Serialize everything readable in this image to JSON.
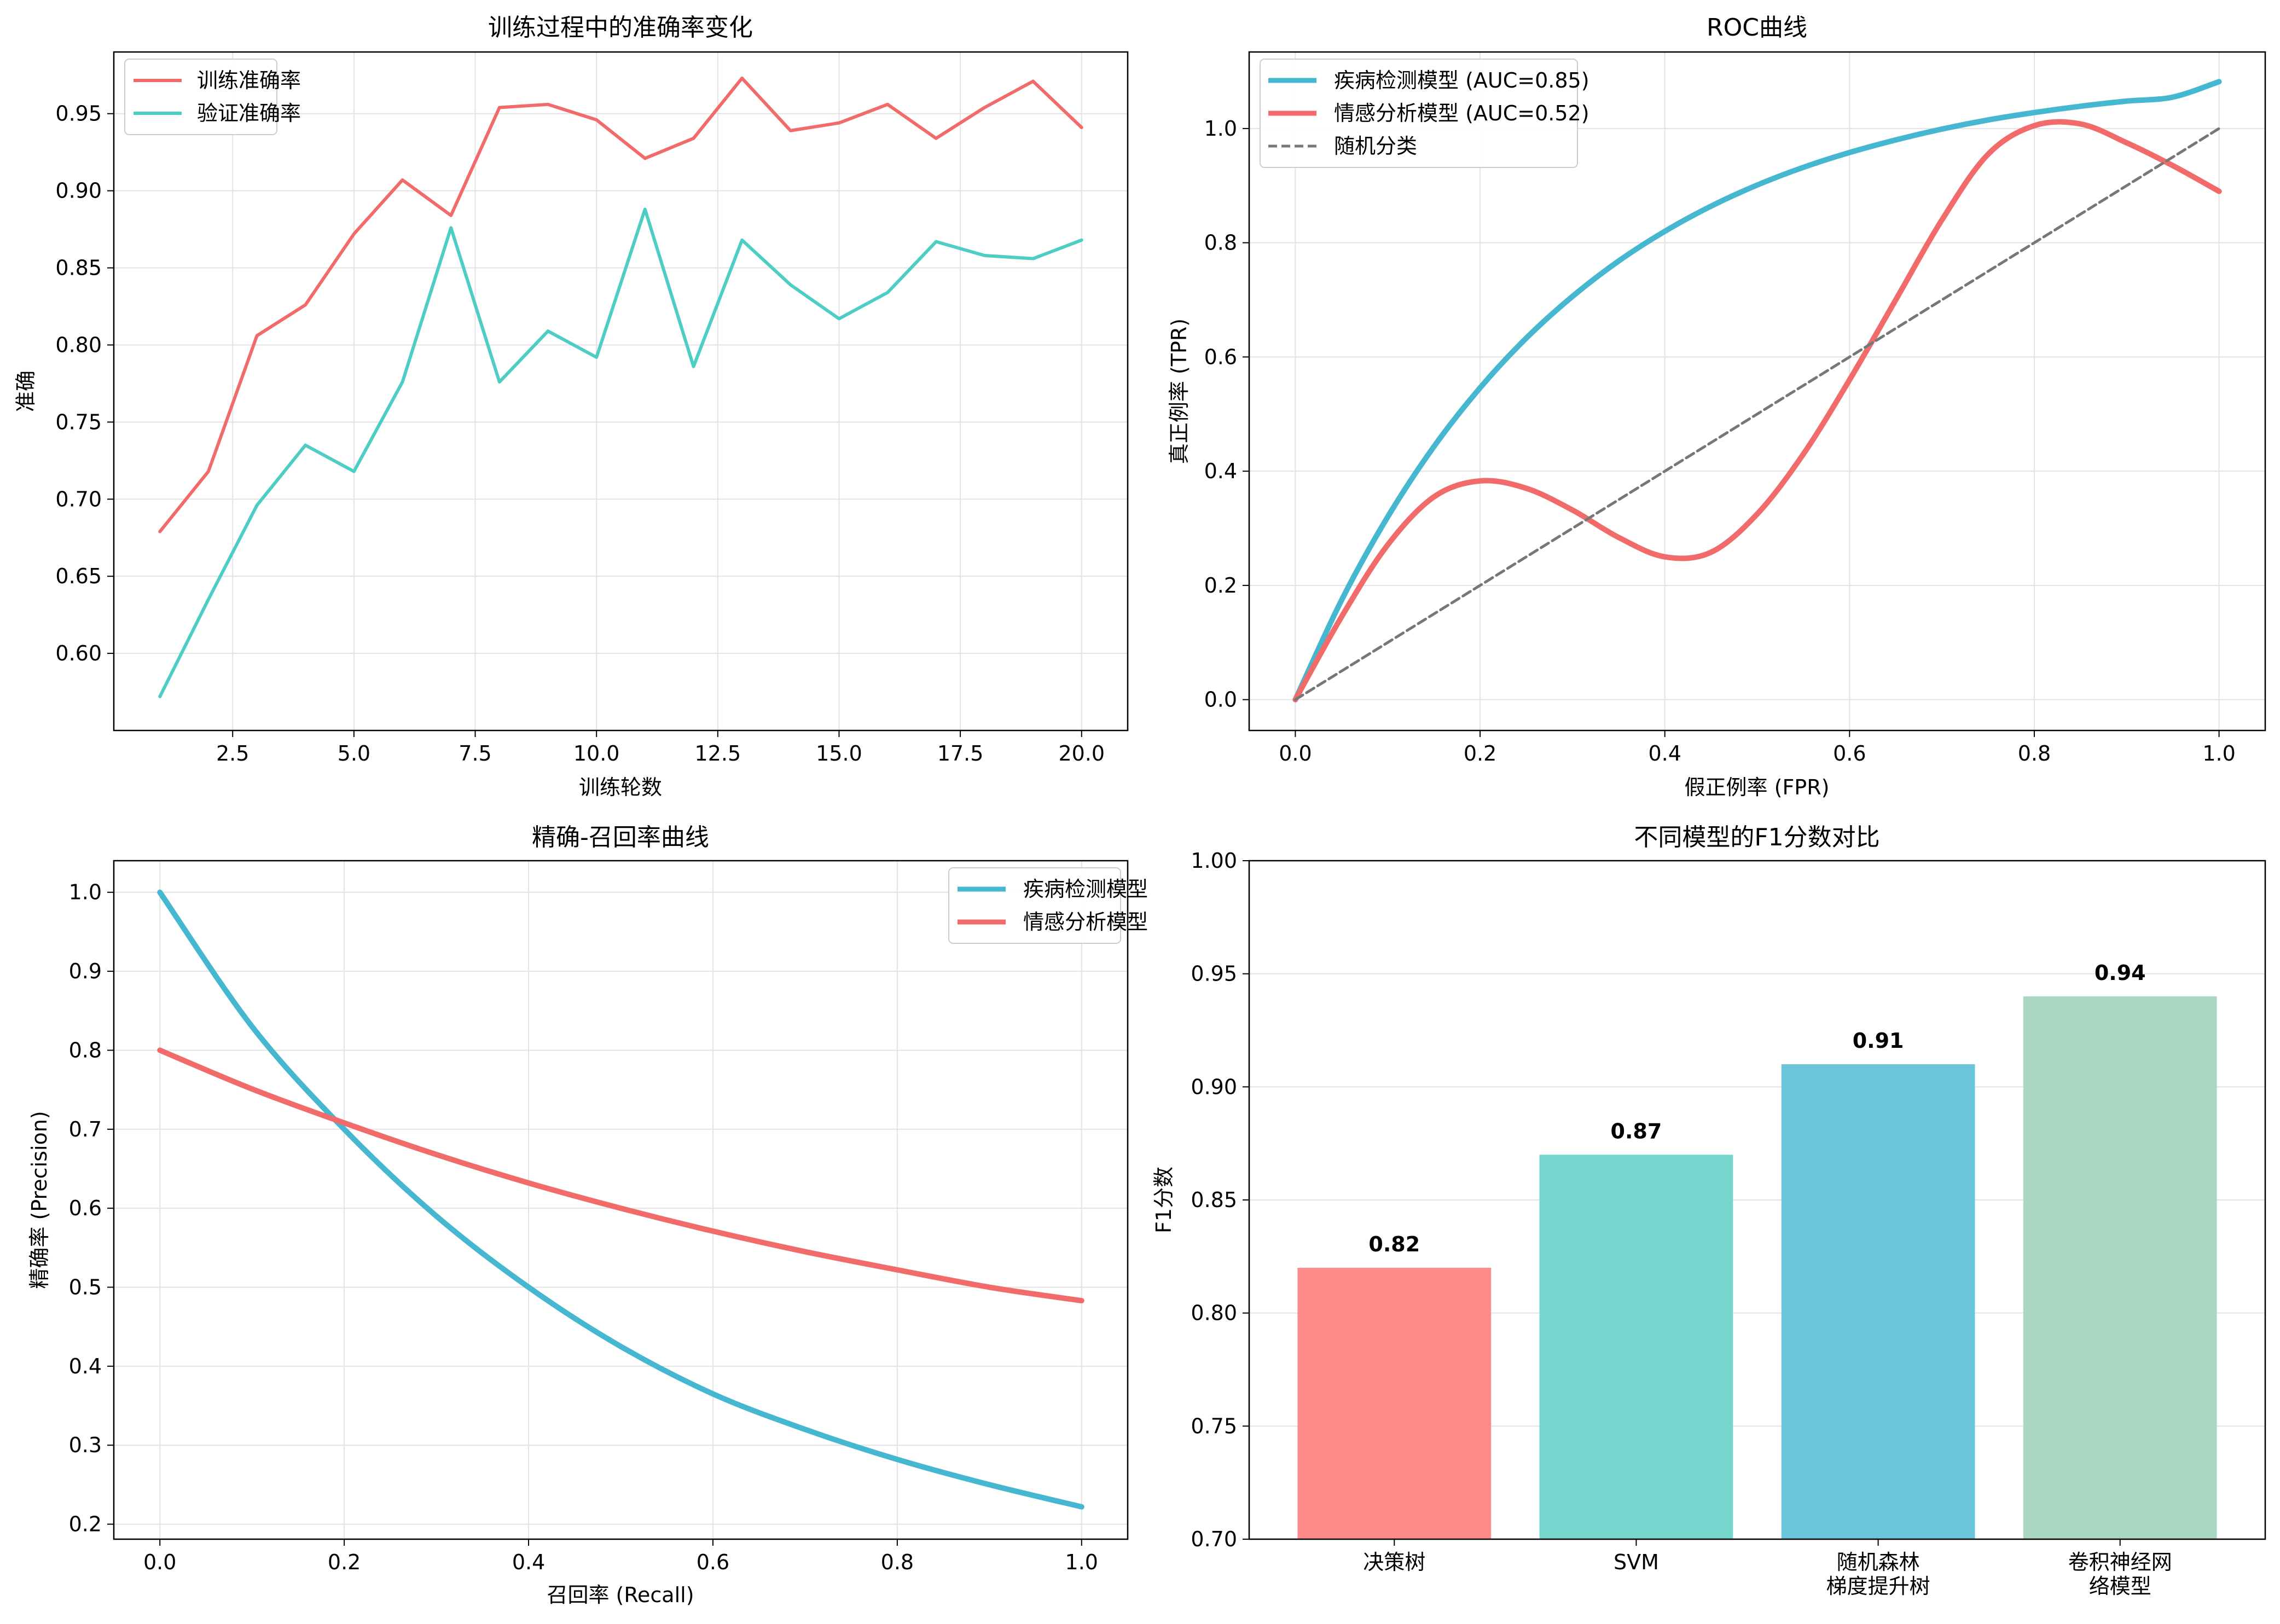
{
  "chart_data": [
    {
      "type": "line",
      "title": "训练过程中的准确率变化",
      "xlabel": "训练轮数",
      "ylabel": "准确",
      "xlim": [
        0.05,
        20.95
      ],
      "ylim": [
        0.55,
        0.99
      ],
      "xticks": [
        2.5,
        5.0,
        7.5,
        10.0,
        12.5,
        15.0,
        17.5,
        20.0
      ],
      "xtick_labels": [
        "2.5",
        "5.0",
        "7.5",
        "10.0",
        "12.5",
        "15.0",
        "17.5",
        "20.0"
      ],
      "yticks": [
        0.6,
        0.65,
        0.7,
        0.75,
        0.8,
        0.85,
        0.9,
        0.95
      ],
      "ytick_labels": [
        "0.60",
        "0.65",
        "0.70",
        "0.75",
        "0.80",
        "0.85",
        "0.90",
        "0.95"
      ],
      "grid": true,
      "legend_position": "upper-left",
      "x": [
        1,
        2,
        3,
        4,
        5,
        6,
        7,
        8,
        9,
        10,
        11,
        12,
        13,
        14,
        15,
        16,
        17,
        18,
        19,
        20
      ],
      "series": [
        {
          "name": "训练准确率",
          "color": "#f26b6b",
          "values": [
            0.679,
            0.718,
            0.806,
            0.826,
            0.872,
            0.907,
            0.884,
            0.954,
            0.956,
            0.946,
            0.921,
            0.934,
            0.973,
            0.939,
            0.944,
            0.956,
            0.934,
            0.954,
            0.971,
            0.941
          ]
        },
        {
          "name": "验证准确率",
          "color": "#4ecdc4",
          "values": [
            0.572,
            0.635,
            0.696,
            0.735,
            0.718,
            0.776,
            0.876,
            0.776,
            0.809,
            0.792,
            0.888,
            0.786,
            0.868,
            0.839,
            0.817,
            0.834,
            0.867,
            0.858,
            0.856,
            0.868
          ]
        }
      ]
    },
    {
      "type": "line",
      "title": "ROC曲线",
      "xlabel": "假正例率 (FPR)",
      "ylabel": "真正例率 (TPR)",
      "xlim": [
        -0.05,
        1.05
      ],
      "ylim": [
        -0.054,
        1.134
      ],
      "xticks": [
        0.0,
        0.2,
        0.4,
        0.6,
        0.8,
        1.0
      ],
      "xtick_labels": [
        "0.0",
        "0.2",
        "0.4",
        "0.6",
        "0.8",
        "1.0"
      ],
      "yticks": [
        0.0,
        0.2,
        0.4,
        0.6,
        0.8,
        1.0
      ],
      "ytick_labels": [
        "0.0",
        "0.2",
        "0.4",
        "0.6",
        "0.8",
        "1.0"
      ],
      "grid": true,
      "legend_position": "upper-left",
      "series": [
        {
          "name": "疾病检测模型 (AUC=0.85)",
          "color": "#45b7d1",
          "x": [
            0.0,
            0.05,
            0.1,
            0.15,
            0.2,
            0.25,
            0.3,
            0.35,
            0.4,
            0.45,
            0.5,
            0.55,
            0.6,
            0.65,
            0.7,
            0.75,
            0.8,
            0.85,
            0.9,
            0.95,
            1.0
          ],
          "values": [
            0.0,
            0.174,
            0.32,
            0.443,
            0.546,
            0.633,
            0.706,
            0.768,
            0.82,
            0.864,
            0.901,
            0.932,
            0.958,
            0.98,
            0.999,
            1.015,
            1.028,
            1.039,
            1.048,
            1.055,
            1.082
          ]
        },
        {
          "name": "情感分析模型 (AUC=0.52)",
          "color": "#f26b6b",
          "x": [
            0.0,
            0.05,
            0.1,
            0.15,
            0.2,
            0.25,
            0.3,
            0.35,
            0.4,
            0.45,
            0.5,
            0.55,
            0.6,
            0.65,
            0.7,
            0.75,
            0.8,
            0.85,
            0.9,
            0.95,
            1.0
          ],
          "values": [
            0.0,
            0.145,
            0.271,
            0.355,
            0.383,
            0.37,
            0.332,
            0.284,
            0.25,
            0.258,
            0.325,
            0.43,
            0.56,
            0.7,
            0.84,
            0.955,
            1.005,
            1.008,
            0.975,
            0.935,
            0.89
          ]
        },
        {
          "name": "随机分类",
          "color": "#777777",
          "dashed": true,
          "x": [
            0.0,
            1.0
          ],
          "values": [
            0.0,
            1.0
          ]
        }
      ]
    },
    {
      "type": "line",
      "title": "精确-召回率曲线",
      "xlabel": "召回率 (Recall)",
      "ylabel": "精确率 (Precision)",
      "xlim": [
        -0.05,
        1.05
      ],
      "ylim": [
        0.181,
        1.04
      ],
      "xticks": [
        0.0,
        0.2,
        0.4,
        0.6,
        0.8,
        1.0
      ],
      "xtick_labels": [
        "0.0",
        "0.2",
        "0.4",
        "0.6",
        "0.8",
        "1.0"
      ],
      "yticks": [
        0.2,
        0.3,
        0.4,
        0.5,
        0.6,
        0.7,
        0.8,
        0.9,
        1.0
      ],
      "ytick_labels": [
        "0.2",
        "0.3",
        "0.4",
        "0.5",
        "0.6",
        "0.7",
        "0.8",
        "0.9",
        "1.0"
      ],
      "grid": true,
      "legend_position": "upper-right",
      "series": [
        {
          "name": "疾病检测模型",
          "color": "#45b7d1",
          "x": [
            0.0,
            0.1,
            0.2,
            0.3,
            0.4,
            0.5,
            0.6,
            0.7,
            0.8,
            0.9,
            1.0
          ],
          "values": [
            1.0,
            0.83,
            0.7,
            0.59,
            0.5,
            0.425,
            0.365,
            0.32,
            0.282,
            0.25,
            0.222
          ]
        },
        {
          "name": "情感分析模型",
          "color": "#f26b6b",
          "x": [
            0.0,
            0.1,
            0.2,
            0.3,
            0.4,
            0.5,
            0.6,
            0.7,
            0.8,
            0.9,
            1.0
          ],
          "values": [
            0.8,
            0.751,
            0.708,
            0.668,
            0.632,
            0.6,
            0.571,
            0.545,
            0.522,
            0.5,
            0.483
          ]
        }
      ]
    },
    {
      "type": "bar",
      "title": "不同模型的F1分数对比",
      "xlabel": "",
      "ylabel": "F1分数",
      "ylim": [
        0.7,
        1.0
      ],
      "yticks": [
        0.7,
        0.75,
        0.8,
        0.85,
        0.9,
        0.95,
        1.0
      ],
      "ytick_labels": [
        "0.70",
        "0.75",
        "0.80",
        "0.85",
        "0.90",
        "0.95",
        "1.00"
      ],
      "grid": true,
      "categories": [
        "决策树",
        "SVM",
        "随机森林\n梯度提升树",
        "卷积神经网\n络模型"
      ],
      "values": [
        0.82,
        0.87,
        0.91,
        0.94
      ],
      "value_labels": [
        "0.82",
        "0.87",
        "0.91",
        "0.94"
      ],
      "colors": [
        "#ff8a8a",
        "#74d6cd",
        "#6ac4da",
        "#aad7c1"
      ]
    }
  ]
}
